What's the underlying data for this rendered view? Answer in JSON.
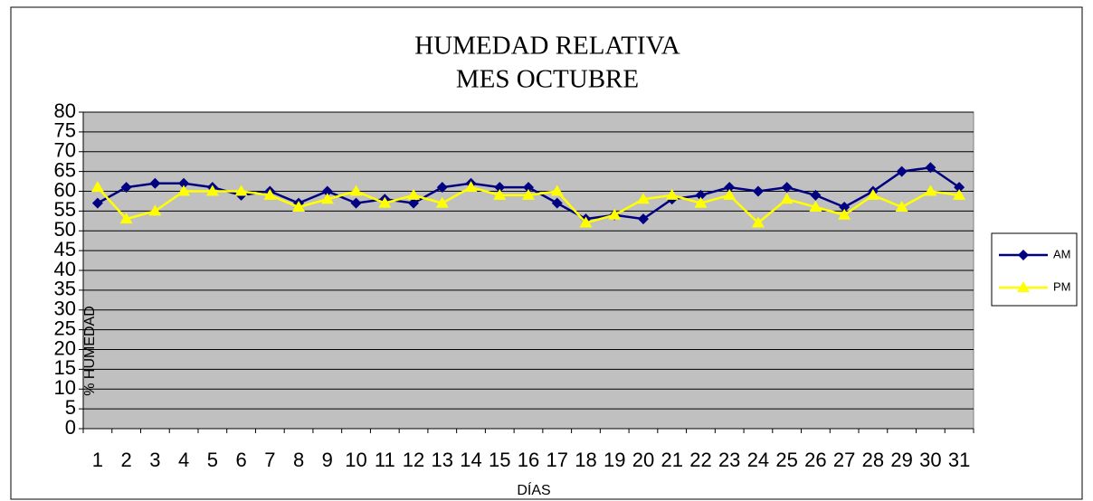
{
  "chart_data": {
    "type": "line",
    "title": "HUMEDAD RELATIVA",
    "subtitle": "MES  OCTUBRE",
    "x_label": "DÍAS",
    "y_label": "% HUMEDAD",
    "categories": [
      "1",
      "2",
      "3",
      "4",
      "5",
      "6",
      "7",
      "8",
      "9",
      "10",
      "11",
      "12",
      "13",
      "14",
      "15",
      "16",
      "17",
      "18",
      "19",
      "20",
      "21",
      "22",
      "23",
      "24",
      "25",
      "26",
      "27",
      "28",
      "29",
      "30",
      "31"
    ],
    "series": [
      {
        "name": "AM",
        "color": "#000080",
        "marker": "diamond",
        "values": [
          57,
          61,
          62,
          62,
          61,
          59,
          60,
          57,
          60,
          57,
          58,
          57,
          61,
          62,
          61,
          61,
          57,
          53,
          54,
          53,
          58,
          59,
          61,
          60,
          61,
          59,
          56,
          60,
          65,
          66,
          61
        ]
      },
      {
        "name": "PM",
        "color": "#ffff00",
        "marker": "triangle",
        "values": [
          61,
          53,
          55,
          60,
          60,
          60,
          59,
          56,
          58,
          60,
          57,
          59,
          57,
          61,
          59,
          59,
          60,
          52,
          54,
          58,
          59,
          57,
          59,
          52,
          58,
          56,
          54,
          59,
          56,
          60,
          59
        ]
      }
    ],
    "ylim": [
      0,
      80
    ],
    "yticks": [
      0,
      5,
      10,
      15,
      20,
      25,
      30,
      35,
      40,
      45,
      50,
      55,
      60,
      65,
      70,
      75,
      80
    ],
    "grid": true,
    "legend": "right",
    "plot_background": "#c0c0c0"
  }
}
